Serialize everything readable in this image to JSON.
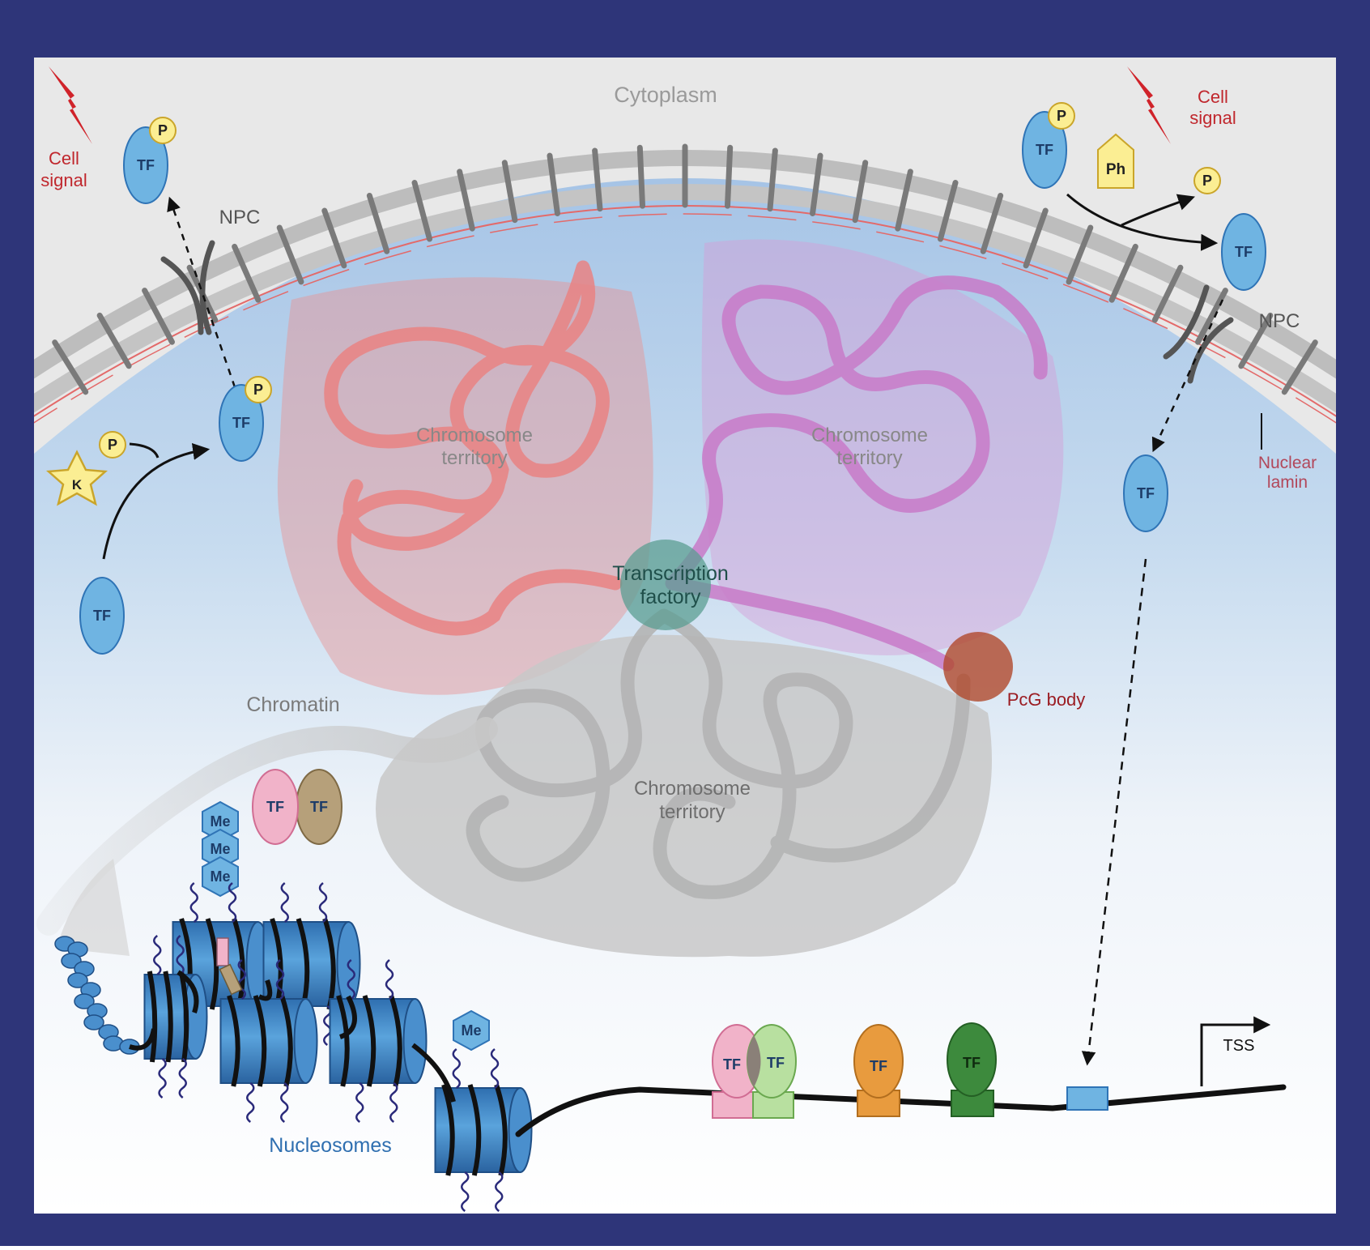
{
  "labels": {
    "cytoplasm": "Cytoplasm",
    "cell_signal_line1": "Cell",
    "cell_signal_line2": "signal",
    "npc": "NPC",
    "nuclear_lamin_line1": "Nuclear",
    "nuclear_lamin_line2": "lamin",
    "chromosome_territory_line1": "Chromosome",
    "chromosome_territory_line2": "territory",
    "transcription_factory_line1": "Transcription",
    "transcription_factory_line2": "factory",
    "pcg_body": "PcG body",
    "chromatin": "Chromatin",
    "nucleosomes": "Nucleosomes",
    "tss": "TSS"
  },
  "molecules": {
    "tf": "TF",
    "phosphate": "P",
    "kinase": "K",
    "phosphatase": "Ph",
    "methyl": "Me"
  },
  "colors": {
    "frame": "#2e3579",
    "cytoplasm": "#e8e8e8",
    "membrane": "#b8b8b8",
    "nucleus_top": "#a9c6e6",
    "tf_blue": "#6fb4e2",
    "phosphate": "#fbee93",
    "signal_red": "#d0232a",
    "territory_red": "#e98b8b",
    "territory_purple": "#c98ac9",
    "territory_gray": "#c7c7c7",
    "factory": "#5b9e92",
    "pcg": "#b0492c",
    "nucleosome": "#3b82c4",
    "tf_pink": "#f1b3c9",
    "tf_brown": "#b6a07a",
    "tf_green": "#b8e0a0",
    "tf_orange": "#e89b3e",
    "tf_darkgreen": "#3d8a3d"
  }
}
